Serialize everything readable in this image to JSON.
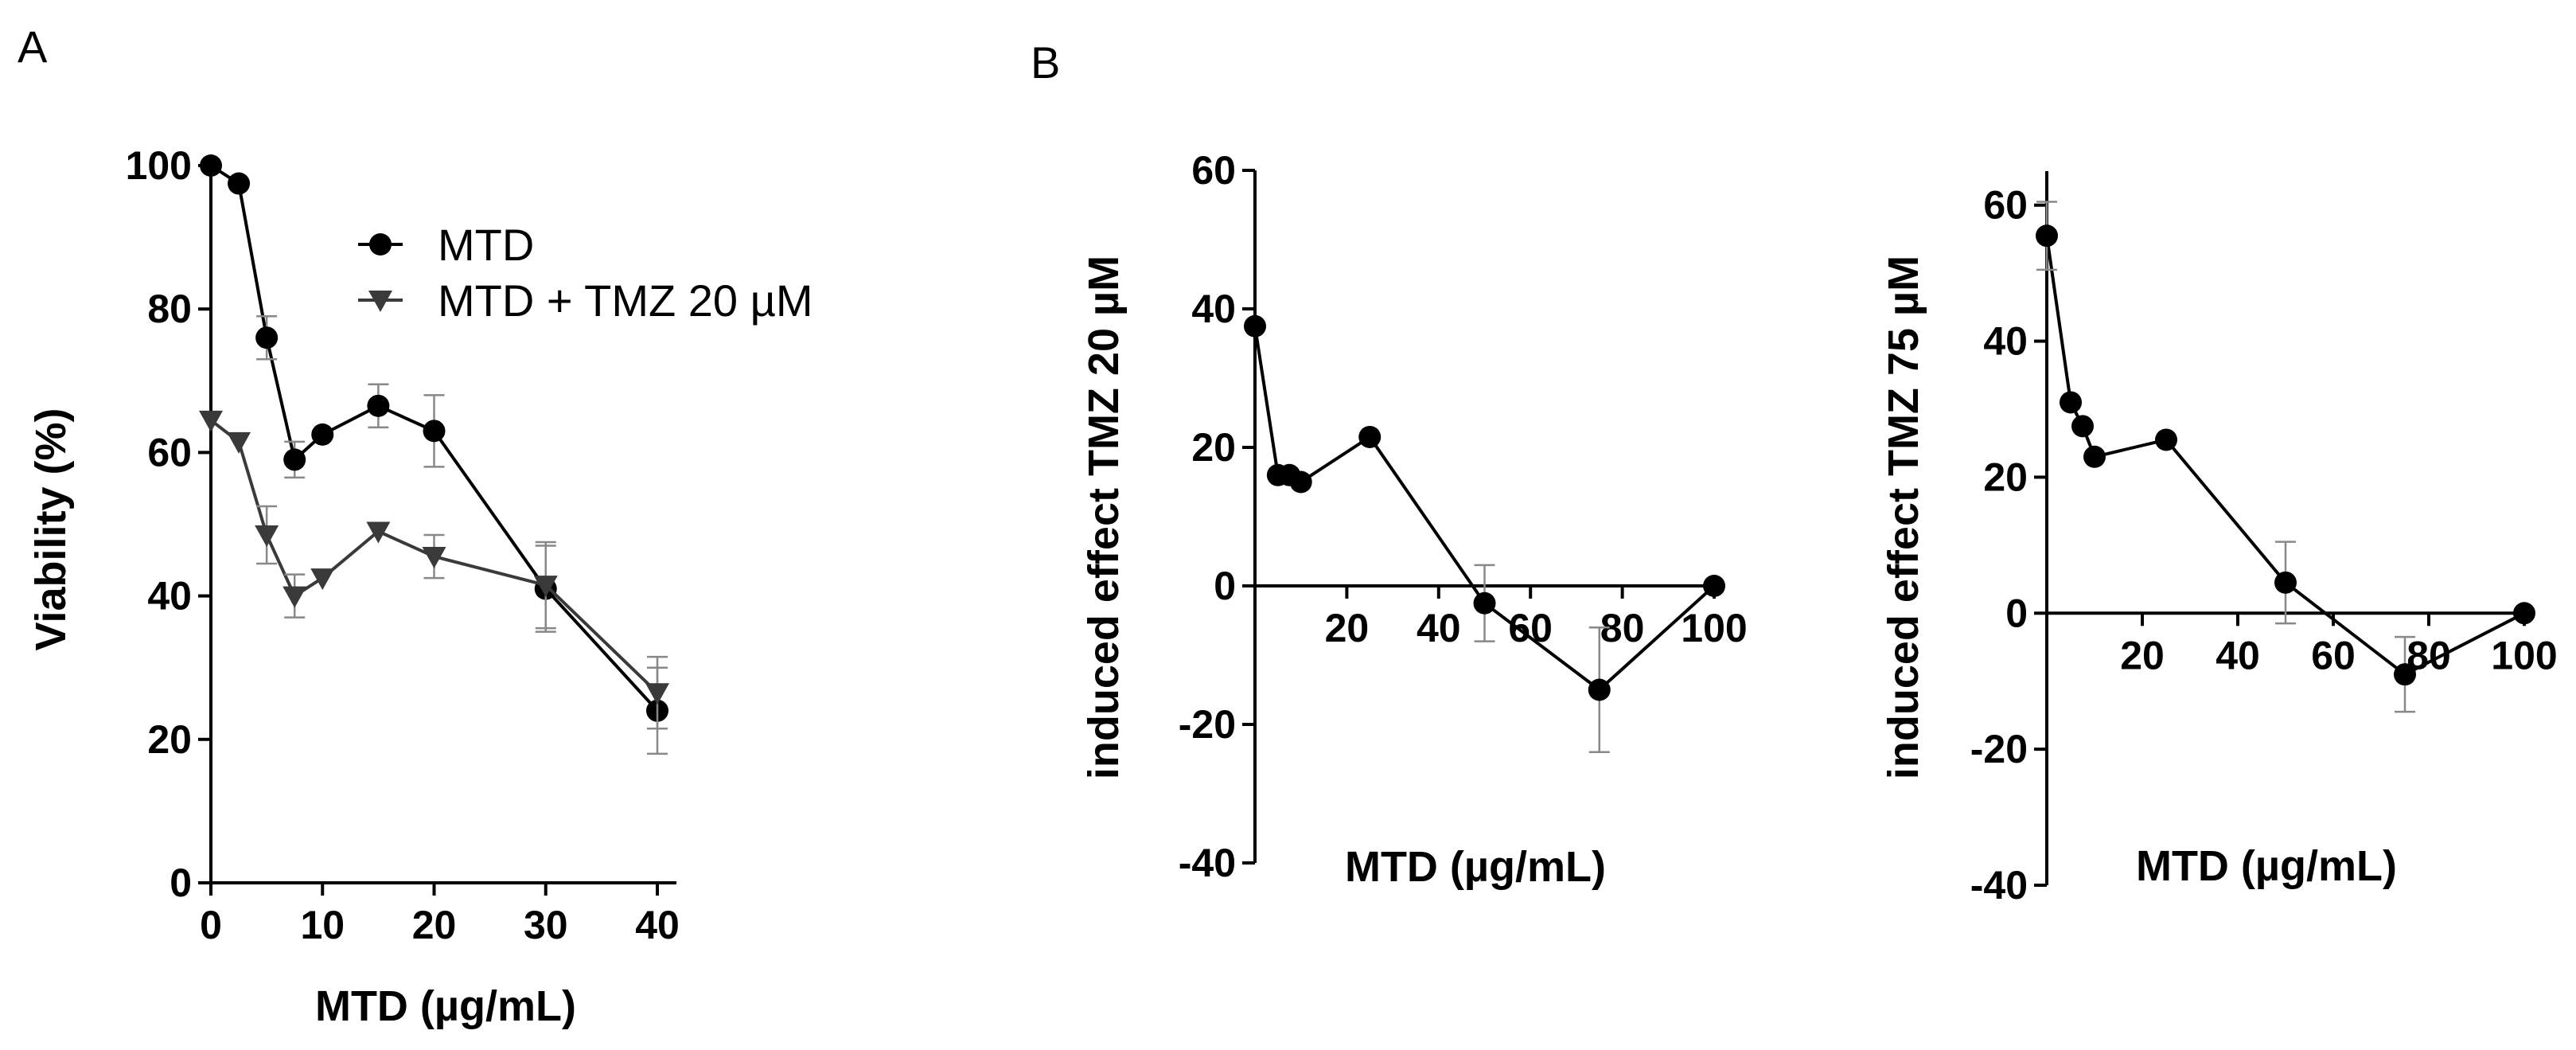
{
  "panels": {
    "A": "A",
    "B": "B"
  },
  "chart_data": [
    {
      "panel": "A",
      "type": "line",
      "xlabel": "MTD (µg/mL)",
      "ylabel": "Viability (%)",
      "xlim": [
        0,
        40
      ],
      "ylim": [
        0,
        100
      ],
      "xticks": [
        "0",
        "10",
        "20",
        "30",
        "40"
      ],
      "yticks": [
        "0",
        "20",
        "40",
        "60",
        "80",
        "100"
      ],
      "grid": false,
      "legend_position": "top-right",
      "series": [
        {
          "name": "MTD",
          "marker": "circle",
          "color": "#000000",
          "x": [
            0,
            2.5,
            5,
            7.5,
            10,
            15,
            20,
            30,
            40
          ],
          "y": [
            100,
            97.5,
            76,
            59,
            62.5,
            66.5,
            63,
            41,
            24
          ],
          "err": [
            0,
            0,
            3,
            2.5,
            0,
            3,
            5,
            6,
            6
          ]
        },
        {
          "name": "MTD + TMZ 20 µM",
          "marker": "triangle-down",
          "color": "#3a3a3a",
          "x": [
            0,
            2.5,
            5,
            7.5,
            10,
            15,
            20,
            30,
            40
          ],
          "y": [
            64.5,
            61.5,
            48.5,
            40,
            42.5,
            49,
            45.5,
            41.5,
            26.5
          ],
          "err": [
            0,
            0,
            4,
            3,
            0,
            0,
            3,
            6,
            5
          ]
        }
      ]
    },
    {
      "panel": "B1",
      "type": "line",
      "xlabel": "MTD (µg/mL)",
      "ylabel": "induced effect TMZ 20 µM",
      "xlim": [
        0,
        100
      ],
      "ylim": [
        -40,
        60
      ],
      "xticks": [
        "20",
        "40",
        "60",
        "80",
        "100"
      ],
      "yticks": [
        "-40",
        "-20",
        "0",
        "20",
        "40",
        "60"
      ],
      "grid": false,
      "series": [
        {
          "marker": "circle",
          "color": "#000000",
          "x": [
            0,
            5,
            7.5,
            10,
            25,
            50,
            75,
            100
          ],
          "y": [
            37.5,
            16,
            16,
            15,
            21.5,
            -2.5,
            -15,
            0
          ],
          "err": [
            0,
            0,
            0,
            0,
            0,
            5.5,
            9,
            0
          ]
        }
      ]
    },
    {
      "panel": "B2",
      "type": "line",
      "xlabel": "MTD (µg/mL)",
      "ylabel": "induced effect TMZ 75 µM",
      "xlim": [
        0,
        100
      ],
      "ylim": [
        -40,
        65
      ],
      "xticks": [
        "20",
        "40",
        "60",
        "80",
        "100"
      ],
      "yticks": [
        "-40",
        "-20",
        "0",
        "20",
        "40",
        "60"
      ],
      "grid": false,
      "series": [
        {
          "marker": "circle",
          "color": "#000000",
          "x": [
            0,
            5,
            7.5,
            10,
            25,
            50,
            75,
            100
          ],
          "y": [
            55.5,
            31,
            27.5,
            23,
            25.5,
            4.5,
            -9,
            0
          ],
          "err": [
            5,
            0,
            0,
            0,
            0,
            6,
            5.5,
            0
          ]
        }
      ]
    }
  ]
}
